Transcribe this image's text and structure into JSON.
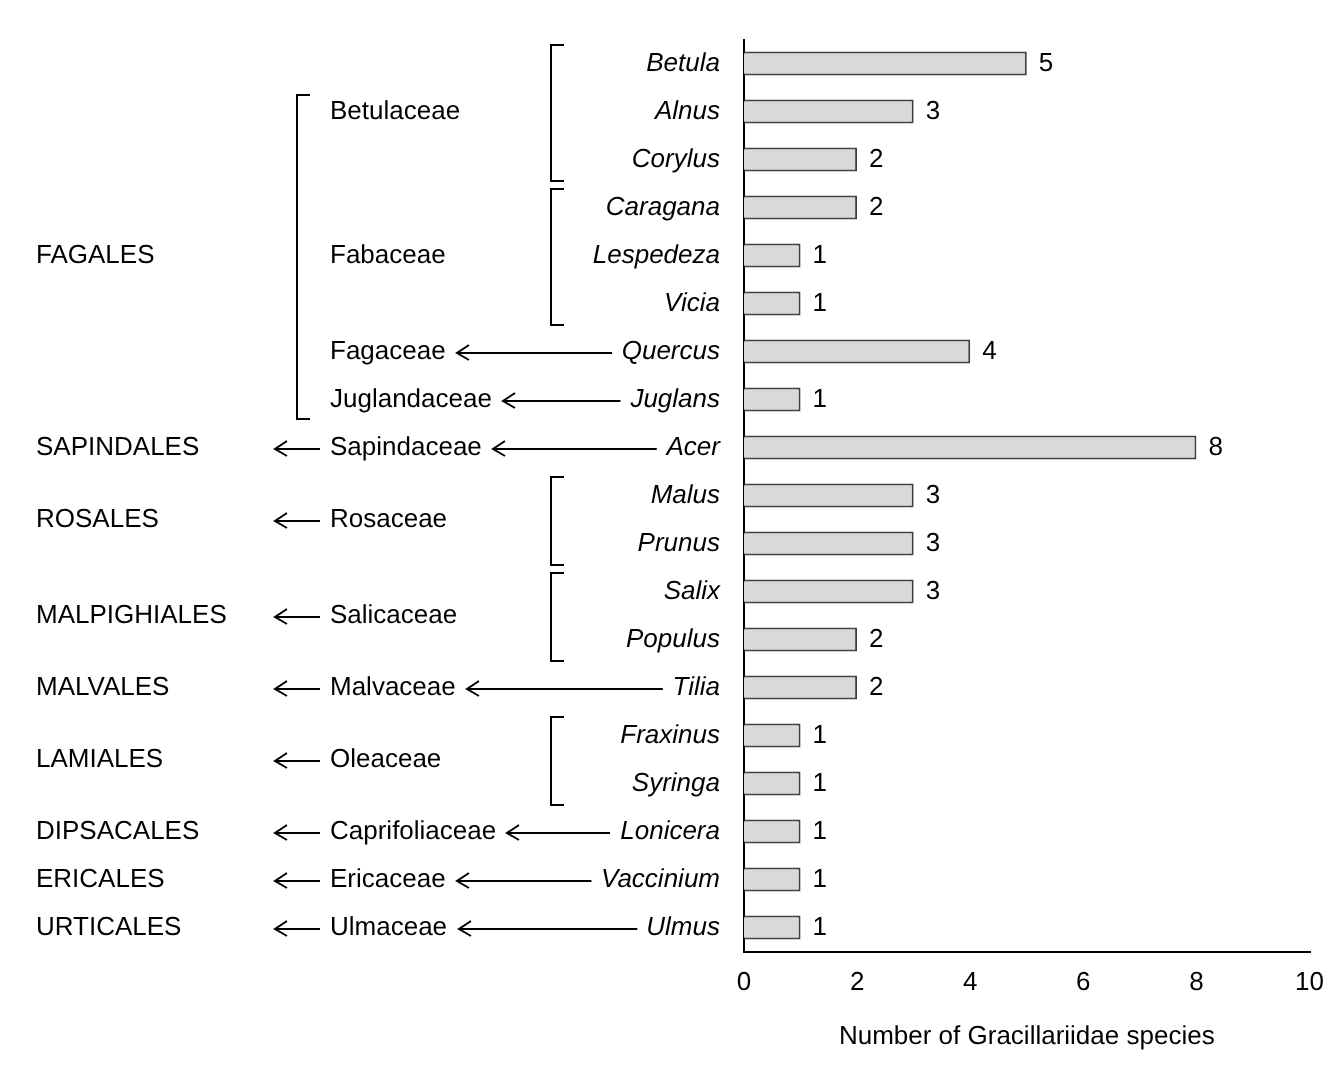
{
  "chart_data": {
    "type": "bar",
    "orientation": "horizontal",
    "categories": [
      "Betula",
      "Alnus",
      "Corylus",
      "Caragana",
      "Lespedeza",
      "Vicia",
      "Quercus",
      "Juglans",
      "Acer",
      "Malus",
      "Prunus",
      "Salix",
      "Populus",
      "Tilia",
      "Fraxinus",
      "Syringa",
      "Lonicera",
      "Vaccinium",
      "Ulmus"
    ],
    "values": [
      5,
      3,
      2,
      2,
      1,
      1,
      4,
      1,
      8,
      3,
      3,
      3,
      2,
      2,
      1,
      1,
      1,
      1,
      1
    ],
    "color": "#d9d9d9",
    "xlabel": "Number of Gracillariidae species",
    "xlim": [
      0,
      10
    ],
    "xticks": [
      0,
      2,
      4,
      6,
      8,
      10
    ],
    "data_labels": true,
    "annotations": [
      "FAGALES",
      "Betulaceae",
      "Fabaceae",
      "Fagaceae",
      "Juglandaceae",
      "SAPINDALES",
      "Sapindaceae",
      "ROSALES",
      "Rosaceae",
      "MALPIGHIALES",
      "Salicaceae",
      "MALVALES",
      "Malvaceae",
      "LAMIALES",
      "Oleaceae",
      "DIPSACALES",
      "Caprifoliaceae",
      "ERICALES",
      "Ericaceae",
      "URTICALES",
      "Ulmaceae"
    ]
  }
}
